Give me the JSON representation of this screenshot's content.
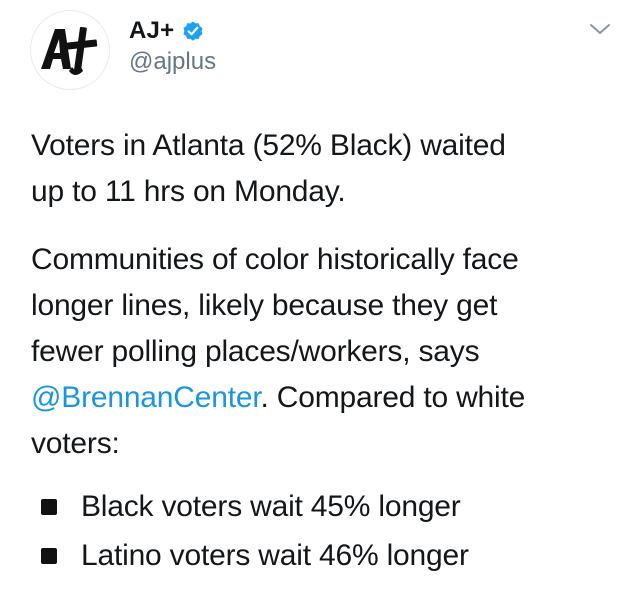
{
  "tweet": {
    "display_name": "AJ+",
    "handle": "@ajplus",
    "verified": true,
    "avatar_logo_text": "AJ+",
    "paragraph1_line1": "Voters in Atlanta (52% Black) waited",
    "paragraph1_line2": "up to 11 hrs on Monday.",
    "paragraph2_line1": "Communities of color historically face",
    "paragraph2_line2": "longer lines, likely because they get",
    "paragraph2_line3": "fewer polling places/workers, says",
    "mention": "@BrennanCenter",
    "paragraph2_line4_rest": ". Compared to white",
    "paragraph2_line5": "voters:",
    "bullets": [
      "Black voters wait 45% longer",
      "Latino voters wait 46% longer"
    ]
  },
  "icons": {
    "verified": "verified-badge-icon",
    "menu": "chevron-down-icon"
  },
  "colors": {
    "text": "#14171a",
    "secondary": "#657786",
    "link": "#1b95e0",
    "verified": "#1da1f2",
    "logo": "#111111"
  }
}
